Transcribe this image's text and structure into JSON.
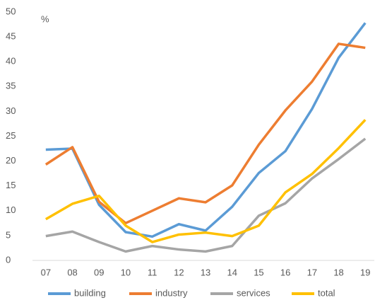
{
  "chart_data": {
    "type": "line",
    "annotations": [
      "%"
    ],
    "categories": [
      "07",
      "08",
      "09",
      "10",
      "11",
      "12",
      "13",
      "14",
      "15",
      "16",
      "17",
      "18",
      "19"
    ],
    "series": [
      {
        "name": "building",
        "color": "#5b9bd5",
        "values": [
          22.3,
          22.5,
          11.2,
          5.7,
          4.8,
          7.3,
          6.0,
          10.8,
          17.6,
          22.0,
          30.5,
          40.8,
          47.8
        ]
      },
      {
        "name": "industry",
        "color": "#ed7d31",
        "values": [
          19.3,
          22.8,
          11.8,
          7.5,
          10.0,
          12.5,
          11.7,
          15.1,
          23.3,
          30.2,
          36.0,
          43.6,
          42.8
        ]
      },
      {
        "name": "services",
        "color": "#a5a5a5",
        "values": [
          4.9,
          5.8,
          3.7,
          1.8,
          2.9,
          2.2,
          1.8,
          2.9,
          9.0,
          11.5,
          16.5,
          20.4,
          24.5
        ]
      },
      {
        "name": "total",
        "color": "#ffc000",
        "values": [
          8.3,
          11.4,
          13.0,
          7.0,
          3.7,
          5.2,
          5.6,
          4.9,
          7.0,
          13.7,
          17.4,
          22.6,
          28.3
        ]
      }
    ],
    "ylim": [
      0,
      50
    ],
    "yticks": [
      0,
      5,
      10,
      15,
      20,
      25,
      30,
      35,
      40,
      45,
      50
    ],
    "legend": "bottom"
  }
}
